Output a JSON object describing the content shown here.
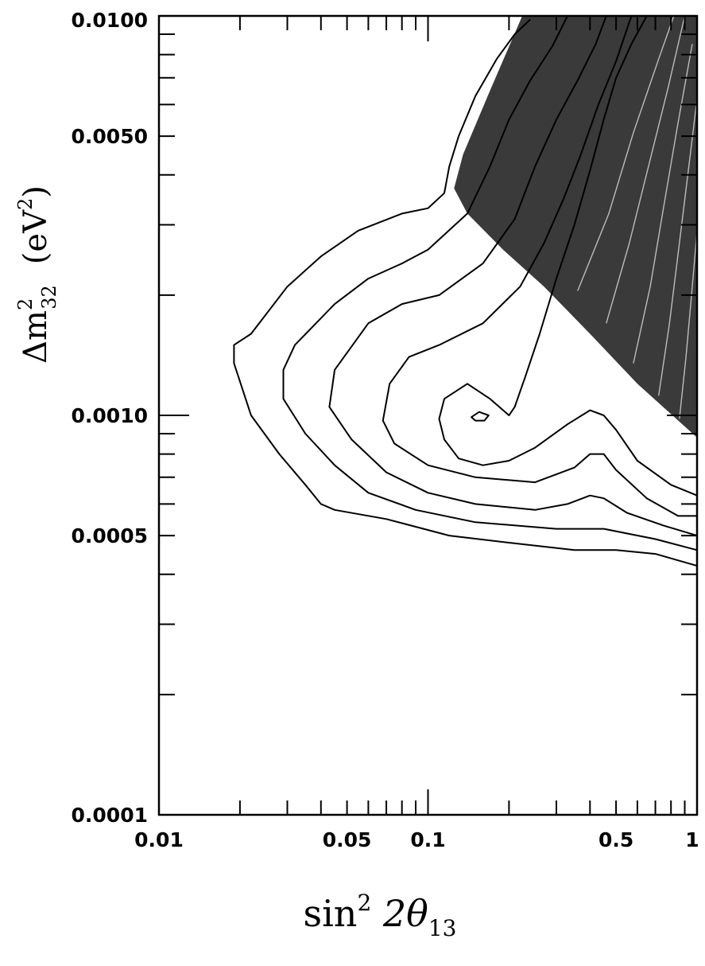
{
  "chart_data": {
    "type": "contour",
    "x_scale": "log",
    "y_scale": "log",
    "xlim": [
      0.01,
      1
    ],
    "ylim": [
      0.0001,
      0.01
    ],
    "xlabel": {
      "base": "sin",
      "sup": "2",
      "mid": " 2θ",
      "sub": "13"
    },
    "ylabel": {
      "base": "Δm",
      "sup": "2",
      "sub": "32",
      "unit_open": "(eV",
      "unit_sup": "2",
      "unit_close": ")"
    },
    "x_tick_labels": [
      {
        "value": 0.01,
        "label": "0.01"
      },
      {
        "value": 0.05,
        "label": "0.05"
      },
      {
        "value": 0.1,
        "label": "0.1"
      },
      {
        "value": 0.5,
        "label": "0.5"
      },
      {
        "value": 1,
        "label": "1"
      }
    ],
    "y_tick_labels": [
      {
        "value": 0.01,
        "label": "0.0100"
      },
      {
        "value": 0.005,
        "label": "0.0050"
      },
      {
        "value": 0.001,
        "label": "0.0010"
      },
      {
        "value": 0.0005,
        "label": "0.0005"
      },
      {
        "value": 0.0001,
        "label": "0.0001"
      }
    ],
    "excluded_region_color": "#3a3a3a",
    "excluded_region_boundary": [
      [
        0.224,
        0.01
      ],
      [
        0.17,
        0.0065
      ],
      [
        0.135,
        0.0045
      ],
      [
        0.125,
        0.0037
      ],
      [
        0.14,
        0.0032
      ],
      [
        0.19,
        0.0026
      ],
      [
        0.27,
        0.0021
      ],
      [
        0.4,
        0.0016
      ],
      [
        0.6,
        0.0012
      ],
      [
        1.0,
        0.00088
      ],
      [
        1.0,
        0.01
      ]
    ],
    "contours": [
      {
        "closed": false,
        "points": [
          [
            1.0,
            0.00042
          ],
          [
            0.7,
            0.00045
          ],
          [
            0.5,
            0.00046
          ],
          [
            0.35,
            0.00046
          ],
          [
            0.2,
            0.00048
          ],
          [
            0.12,
            0.0005
          ],
          [
            0.07,
            0.00055
          ],
          [
            0.045,
            0.00058
          ],
          [
            0.04,
            0.0006
          ],
          [
            0.035,
            0.00067
          ],
          [
            0.028,
            0.0008
          ],
          [
            0.022,
            0.001
          ],
          [
            0.019,
            0.00135
          ],
          [
            0.019,
            0.0015
          ],
          [
            0.022,
            0.0016
          ],
          [
            0.03,
            0.0021
          ],
          [
            0.04,
            0.0025
          ],
          [
            0.055,
            0.0029
          ],
          [
            0.08,
            0.0032
          ],
          [
            0.1,
            0.0033
          ],
          [
            0.115,
            0.0036
          ],
          [
            0.12,
            0.0042
          ],
          [
            0.13,
            0.005
          ],
          [
            0.15,
            0.0063
          ],
          [
            0.18,
            0.0078
          ],
          [
            0.21,
            0.009
          ],
          [
            0.24,
            0.0098
          ]
        ]
      },
      {
        "closed": false,
        "points": [
          [
            1.0,
            0.00046
          ],
          [
            0.7,
            0.00049
          ],
          [
            0.45,
            0.00052
          ],
          [
            0.3,
            0.00052
          ],
          [
            0.15,
            0.00054
          ],
          [
            0.09,
            0.00058
          ],
          [
            0.06,
            0.00064
          ],
          [
            0.045,
            0.00075
          ],
          [
            0.035,
            0.0009
          ],
          [
            0.029,
            0.0011
          ],
          [
            0.029,
            0.0013
          ],
          [
            0.032,
            0.0015
          ],
          [
            0.045,
            0.0019
          ],
          [
            0.06,
            0.0022
          ],
          [
            0.08,
            0.0024
          ],
          [
            0.1,
            0.0026
          ],
          [
            0.14,
            0.0032
          ],
          [
            0.17,
            0.0042
          ],
          [
            0.2,
            0.0055
          ],
          [
            0.24,
            0.0069
          ],
          [
            0.29,
            0.0084
          ],
          [
            0.33,
            0.01
          ]
        ]
      },
      {
        "closed": false,
        "points": [
          [
            1.0,
            0.0005
          ],
          [
            0.75,
            0.00053
          ],
          [
            0.55,
            0.00057
          ],
          [
            0.45,
            0.00062
          ],
          [
            0.4,
            0.00063
          ],
          [
            0.33,
            0.0006
          ],
          [
            0.25,
            0.00058
          ],
          [
            0.15,
            0.0006
          ],
          [
            0.1,
            0.00064
          ],
          [
            0.07,
            0.00072
          ],
          [
            0.052,
            0.00087
          ],
          [
            0.043,
            0.00105
          ],
          [
            0.045,
            0.0013
          ],
          [
            0.06,
            0.0017
          ],
          [
            0.08,
            0.0019
          ],
          [
            0.11,
            0.002
          ],
          [
            0.16,
            0.0024
          ],
          [
            0.21,
            0.0031
          ],
          [
            0.25,
            0.0042
          ],
          [
            0.3,
            0.0055
          ],
          [
            0.36,
            0.0069
          ],
          [
            0.42,
            0.0085
          ],
          [
            0.46,
            0.01
          ]
        ]
      },
      {
        "closed": false,
        "points": [
          [
            1.0,
            0.00056
          ],
          [
            0.85,
            0.00056
          ],
          [
            0.65,
            0.00062
          ],
          [
            0.5,
            0.00073
          ],
          [
            0.45,
            0.0008
          ],
          [
            0.4,
            0.0008
          ],
          [
            0.35,
            0.00074
          ],
          [
            0.25,
            0.00068
          ],
          [
            0.15,
            0.0007
          ],
          [
            0.1,
            0.00075
          ],
          [
            0.075,
            0.00085
          ],
          [
            0.068,
            0.00097
          ],
          [
            0.072,
            0.0012
          ],
          [
            0.085,
            0.0014
          ],
          [
            0.11,
            0.0015
          ],
          [
            0.16,
            0.0017
          ],
          [
            0.22,
            0.0021
          ],
          [
            0.27,
            0.0027
          ],
          [
            0.32,
            0.0035
          ],
          [
            0.37,
            0.0045
          ],
          [
            0.43,
            0.006
          ],
          [
            0.5,
            0.0077
          ],
          [
            0.57,
            0.01
          ]
        ]
      },
      {
        "closed": false,
        "points": [
          [
            1.0,
            0.00063
          ],
          [
            0.8,
            0.00067
          ],
          [
            0.6,
            0.00077
          ],
          [
            0.5,
            0.00092
          ],
          [
            0.45,
            0.001
          ],
          [
            0.4,
            0.00103
          ],
          [
            0.33,
            0.00095
          ],
          [
            0.25,
            0.00083
          ],
          [
            0.2,
            0.00077
          ],
          [
            0.16,
            0.00075
          ],
          [
            0.13,
            0.00078
          ],
          [
            0.115,
            0.00087
          ],
          [
            0.11,
            0.00098
          ],
          [
            0.115,
            0.0011
          ],
          [
            0.14,
            0.0012
          ],
          [
            0.17,
            0.0011
          ],
          [
            0.2,
            0.001
          ],
          [
            0.21,
            0.00105
          ],
          [
            0.23,
            0.00125
          ],
          [
            0.26,
            0.0016
          ],
          [
            0.3,
            0.0022
          ],
          [
            0.35,
            0.003
          ],
          [
            0.4,
            0.0041
          ],
          [
            0.45,
            0.0055
          ],
          [
            0.5,
            0.007
          ],
          [
            0.57,
            0.0085
          ],
          [
            0.65,
            0.01
          ]
        ]
      },
      {
        "closed": true,
        "points": [
          [
            0.145,
            0.00099
          ],
          [
            0.155,
            0.00102
          ],
          [
            0.168,
            0.001
          ],
          [
            0.162,
            0.00097
          ],
          [
            0.15,
            0.00097
          ]
        ]
      },
      {
        "closed": false,
        "points": [
          [
            0.36,
            0.00205
          ],
          [
            0.47,
            0.0032
          ],
          [
            0.58,
            0.0051
          ],
          [
            0.72,
            0.0078
          ],
          [
            0.82,
            0.01
          ]
        ]
      },
      {
        "closed": false,
        "points": [
          [
            0.46,
            0.0017
          ],
          [
            0.56,
            0.0027
          ],
          [
            0.66,
            0.0042
          ],
          [
            0.78,
            0.0066
          ],
          [
            0.9,
            0.01
          ]
        ]
      },
      {
        "closed": false,
        "points": [
          [
            0.58,
            0.00135
          ],
          [
            0.67,
            0.0021
          ],
          [
            0.75,
            0.0033
          ],
          [
            0.85,
            0.0054
          ],
          [
            0.96,
            0.0085
          ]
        ]
      },
      {
        "closed": false,
        "points": [
          [
            0.72,
            0.00112
          ],
          [
            0.79,
            0.0017
          ],
          [
            0.86,
            0.0027
          ],
          [
            0.94,
            0.0044
          ],
          [
            1.0,
            0.0062
          ]
        ]
      },
      {
        "closed": false,
        "points": [
          [
            0.86,
            0.00098
          ],
          [
            0.91,
            0.0014
          ],
          [
            0.96,
            0.0021
          ],
          [
            1.0,
            0.0029
          ]
        ]
      }
    ],
    "grid": false,
    "legend": "none"
  }
}
